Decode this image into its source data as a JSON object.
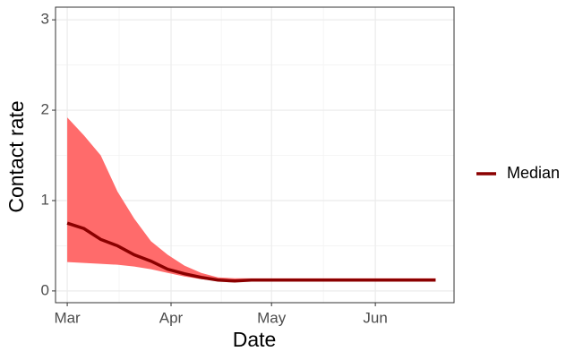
{
  "chart_data": {
    "type": "ribbon-line",
    "x_label": "Date",
    "y_label": "Contact rate",
    "x": [
      0,
      5,
      10,
      15,
      20,
      25,
      30,
      35,
      40,
      45,
      50,
      55,
      60,
      65,
      70,
      75,
      80,
      85,
      90,
      95,
      100,
      105,
      110
    ],
    "series": [
      {
        "name": "Median",
        "color": "#8b0000",
        "values": [
          0.75,
          0.69,
          0.57,
          0.5,
          0.4,
          0.33,
          0.24,
          0.19,
          0.15,
          0.12,
          0.11,
          0.12,
          0.12,
          0.12,
          0.12,
          0.12,
          0.12,
          0.12,
          0.12,
          0.12,
          0.12,
          0.12,
          0.12
        ],
        "lower": [
          0.32,
          0.31,
          0.3,
          0.29,
          0.27,
          0.24,
          0.2,
          0.16,
          0.13,
          0.11,
          0.1,
          0.11,
          0.11,
          0.11,
          0.11,
          0.11,
          0.11,
          0.11,
          0.11,
          0.11,
          0.11,
          0.11,
          0.11
        ],
        "upper": [
          1.92,
          1.72,
          1.5,
          1.1,
          0.8,
          0.55,
          0.4,
          0.28,
          0.2,
          0.15,
          0.14,
          0.14,
          0.14,
          0.14,
          0.14,
          0.14,
          0.14,
          0.14,
          0.14,
          0.14,
          0.14,
          0.14,
          0.14
        ],
        "band_color": "#ff6b6b"
      }
    ],
    "xlim": [
      -3.5,
      115.5
    ],
    "xticks": [
      {
        "value": 0,
        "label": "Mar"
      },
      {
        "value": 31,
        "label": "Apr"
      },
      {
        "value": 61,
        "label": "May"
      },
      {
        "value": 92,
        "label": "Jun"
      }
    ],
    "ylim": [
      -0.13,
      3.14
    ],
    "yticks": [
      0,
      1,
      2,
      3
    ],
    "grid": true,
    "legend": "right"
  }
}
